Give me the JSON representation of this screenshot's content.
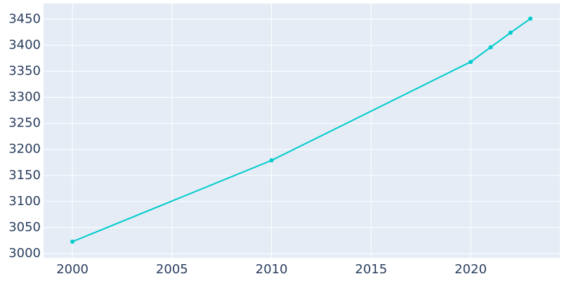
{
  "chart_data": {
    "type": "line",
    "x": [
      2000,
      2010,
      2020,
      2021,
      2022,
      2023
    ],
    "series": [
      {
        "color": "#00cccc",
        "values": [
          3023,
          3179,
          3368,
          3396,
          3424,
          3451
        ]
      }
    ],
    "xlim": [
      1998.55,
      2024.48
    ],
    "xticks": [
      2000,
      2005,
      2010,
      2015,
      2020
    ],
    "ylim": [
      2992,
      3480
    ],
    "yticks": [
      3000,
      3050,
      3100,
      3150,
      3200,
      3250,
      3300,
      3350,
      3400,
      3450
    ],
    "grid": true,
    "plot_background": "#e5ecf6"
  }
}
